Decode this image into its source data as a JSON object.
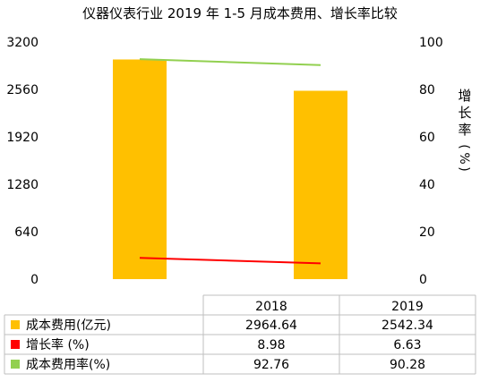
{
  "chart_data": {
    "type": "bar",
    "title": "仪器仪表行业 2019 年 1-5 月成本费用、增长率比较",
    "categories": [
      "2018",
      "2019"
    ],
    "y_left": {
      "ticks": [
        "0",
        "640",
        "1280",
        "1920",
        "2560",
        "3200"
      ],
      "range": [
        0,
        3200
      ]
    },
    "y_right": {
      "ticks": [
        "0",
        "20",
        "40",
        "60",
        "80",
        "100"
      ],
      "range": [
        0,
        100
      ],
      "label": "增长率(%)"
    },
    "grid": false,
    "legend_placement": "data-table",
    "series": [
      {
        "name": "成本费用(亿元)",
        "kind": "bar",
        "axis": "left",
        "color": "#FFC000",
        "values": [
          2964.64,
          2542.34
        ],
        "labels": [
          "2964.64",
          "2542.34"
        ]
      },
      {
        "name": "增长率 (%)",
        "kind": "line",
        "axis": "right",
        "color": "#FF0000",
        "values": [
          8.98,
          6.63
        ],
        "labels": [
          "8.98",
          "6.63"
        ]
      },
      {
        "name": "成本费用率(%)",
        "kind": "line",
        "axis": "right",
        "color": "#92D050",
        "values": [
          92.76,
          90.28
        ],
        "labels": [
          "92.76",
          "90.28"
        ]
      }
    ]
  }
}
